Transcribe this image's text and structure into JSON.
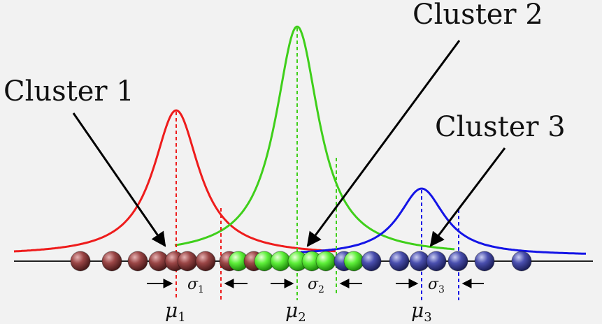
{
  "labels": {
    "cluster_1": "Cluster 1",
    "cluster_2": "Cluster 2",
    "cluster_3": "Cluster 3",
    "sigma_1": "σ",
    "sigma_1_sub": "1",
    "sigma_2": "σ",
    "sigma_2_sub": "2",
    "sigma_3": "σ",
    "sigma_3_sub": "3",
    "mu_1": "μ",
    "mu_1_sub": "1",
    "mu_2": "μ",
    "mu_2_sub": "2",
    "mu_3": "μ",
    "mu_3_sub": "3"
  },
  "colors": {
    "background": "#f2f2f2",
    "cluster_1": "#ee1c1c",
    "cluster_2": "#3fcf1a",
    "cluster_3": "#1414e6",
    "ball_1": "#8a3a3a",
    "ball_2": "#4ee62e",
    "ball_3": "#3b3f9e",
    "axis": "#222222"
  }
}
